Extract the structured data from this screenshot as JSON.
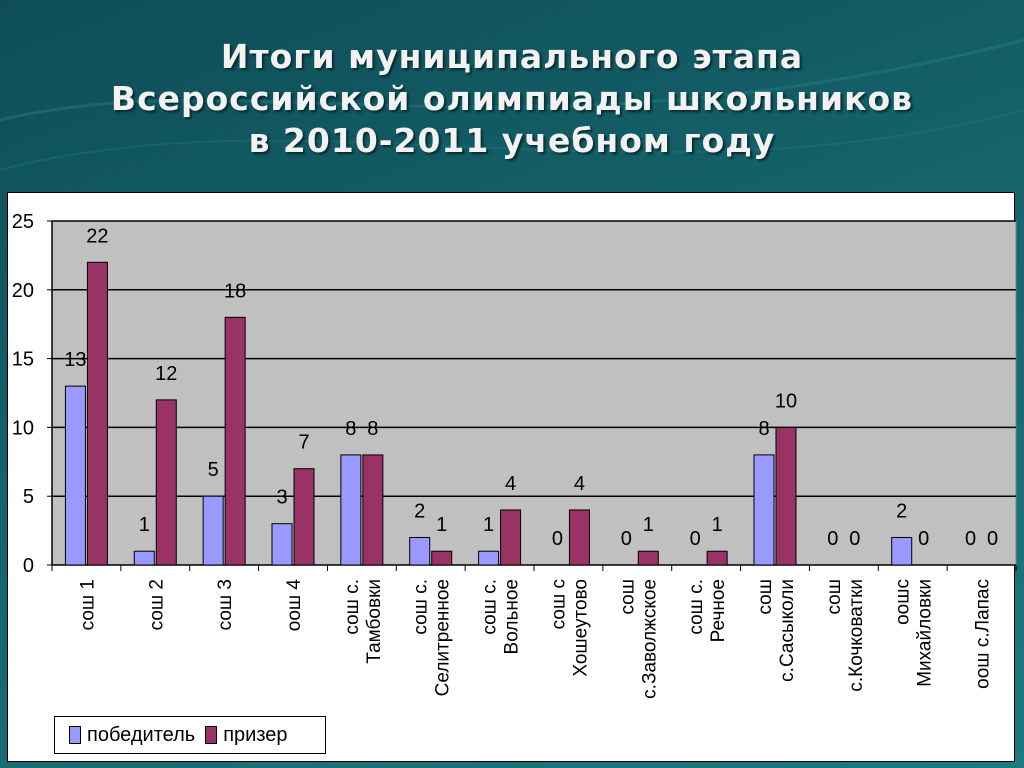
{
  "title_lines": [
    "Итоги муниципального этапа",
    "Всероссийской олимпиады школьников",
    "в 2010-2011 учебном году"
  ],
  "colors": {
    "winner": "#9999ff",
    "prize": "#993366",
    "plot_bg": "#c0c0c0"
  },
  "chart_data": {
    "type": "bar",
    "title": "",
    "xlabel": "",
    "ylabel": "",
    "ylim": [
      0,
      25
    ],
    "yticks": [
      0,
      5,
      10,
      15,
      20,
      25
    ],
    "grid": true,
    "legend_position": "bottom-left",
    "categories": [
      [
        "сош 1"
      ],
      [
        "сош 2"
      ],
      [
        "сош 3"
      ],
      [
        "оош 4"
      ],
      [
        "сош с.",
        "Тамбовки"
      ],
      [
        "сош с.",
        "Селитренное"
      ],
      [
        "сош с.",
        "Вольное"
      ],
      [
        "сош с",
        "Хошеутово"
      ],
      [
        "сош",
        "с.Заволжское"
      ],
      [
        "сош с.",
        "Речное"
      ],
      [
        "сош",
        "с.Сасыколи"
      ],
      [
        "сош",
        "с.Кочковатки"
      ],
      [
        "оошс",
        "Михайловки"
      ],
      [
        "оош с.Лапас"
      ]
    ],
    "series": [
      {
        "name": "победитель",
        "values": [
          13,
          1,
          5,
          3,
          8,
          2,
          1,
          0,
          0,
          0,
          8,
          0,
          2,
          0
        ]
      },
      {
        "name": "призер",
        "values": [
          22,
          12,
          18,
          7,
          8,
          1,
          4,
          4,
          1,
          1,
          10,
          0,
          0,
          0
        ]
      }
    ]
  }
}
